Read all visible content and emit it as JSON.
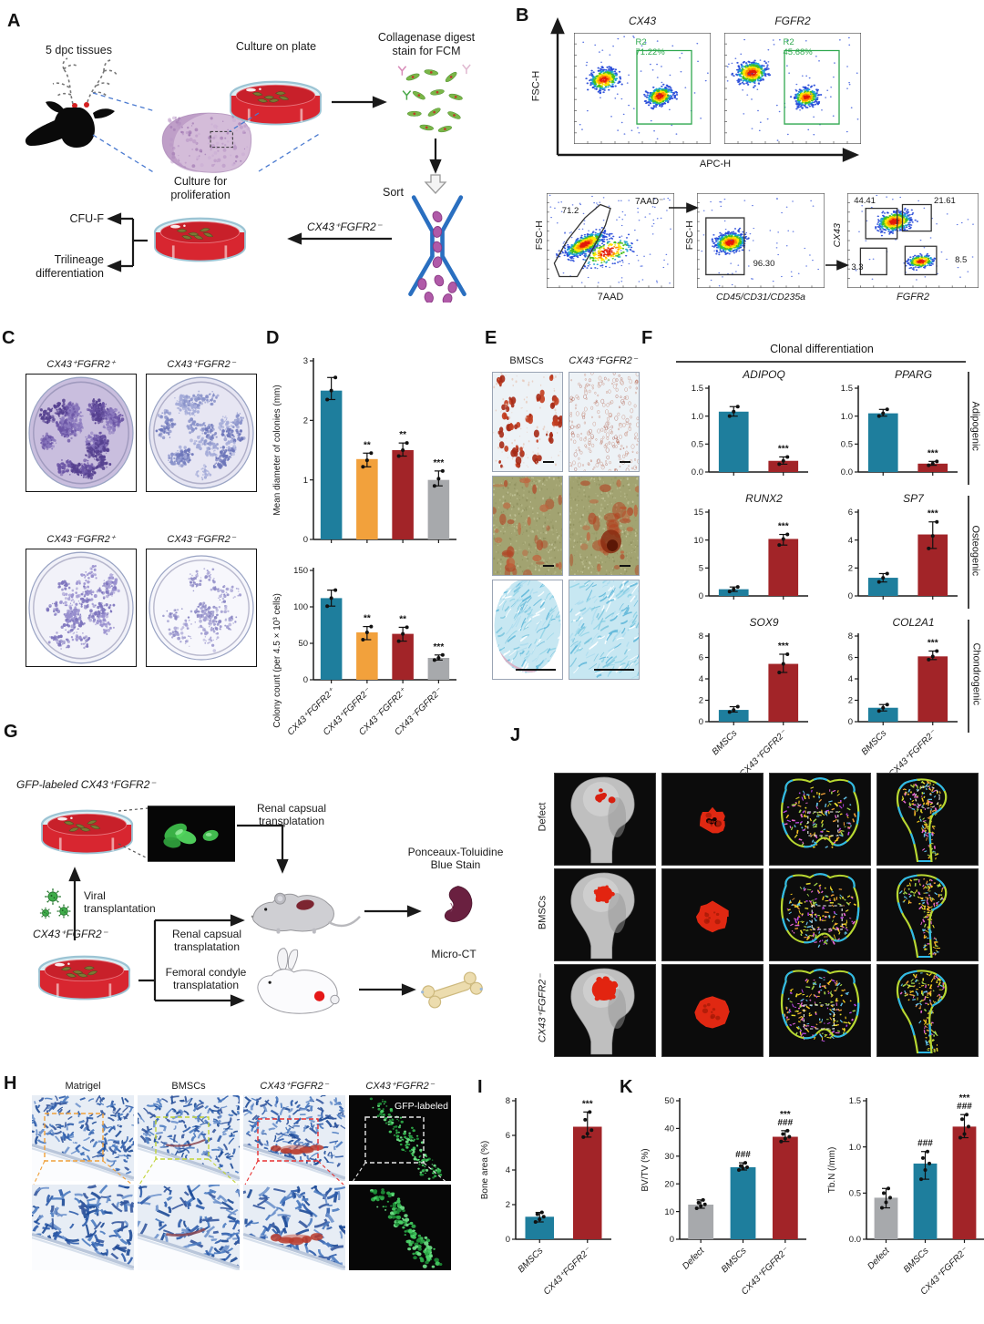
{
  "colors": {
    "teal": "#1e7e9d",
    "orange": "#f2a13c",
    "dark_red": "#a22428",
    "gray": "#a7a9ac",
    "gate_green": "#2fa84f",
    "petri_red": "#c8202a",
    "gfp_green": "#3dbb4a"
  },
  "populations": {
    "pp": "CX43⁺FGFR2⁺",
    "pm": "CX43⁺FGFR2⁻",
    "mp": "CX43⁻FGFR2⁺",
    "mm": "CX43⁻FGFR2⁻"
  },
  "panel_a": {
    "label": "A",
    "tissues": "5 dpc tissues",
    "culture_plate": "Culture on plate",
    "collagenase": "Collagenase digest\nstain for FCM",
    "sort": "Sort",
    "sorted_population": "CX43⁺FGFR2⁻",
    "culture_proliferation": "Culture for\nproliferation",
    "cfu": "CFU-F",
    "trilineage": "Trilineage\ndifferentiation"
  },
  "panel_b": {
    "label": "B",
    "y_axis": "FSC-H",
    "x_axis": "APC-H",
    "cx43": {
      "title": "CX43",
      "gate": "R2\n71.22%"
    },
    "fgfr2": {
      "title": "FGFR2",
      "gate": "R2\n45.68%"
    },
    "viability": {
      "xlabel": "7AAD",
      "ylabel": "FSC-H",
      "gate_pct": "71.2",
      "negative": "7AAD⁻"
    },
    "lineage": {
      "xlabel": "CD45/CD31/CD235a",
      "ylabel": "FSC-H",
      "gate_pct": "96.30"
    },
    "quad": {
      "xlabel": "FGFR2",
      "ylabel": "CX43",
      "tl": "44.41",
      "tr": "21.61",
      "bl": "3.3",
      "br": "8.5"
    }
  },
  "panel_c": {
    "label": "C",
    "plates": [
      {
        "label": "CX43⁺FGFR2⁺"
      },
      {
        "label": "CX43⁺FGFR2⁻"
      },
      {
        "label": "CX43⁻FGFR2⁺"
      },
      {
        "label": "CX43⁻FGFR2⁻"
      }
    ]
  },
  "panel_d": {
    "label": "D"
  },
  "panel_e": {
    "label": "E",
    "col1": "BMSCs",
    "col2": "CX43⁺FGFR2⁻"
  },
  "panel_f": {
    "label": "F",
    "header": "Clonal differentiation",
    "groups": [
      "Adipogenic",
      "Osteogenic",
      "Chondrogenic"
    ]
  },
  "panel_g": {
    "label": "G",
    "gfp_label": "GFP-labeled CX43⁺FGFR2⁻",
    "viral": "Viral\ntransplantation",
    "population": "CX43⁺FGFR2⁻",
    "renal_top": "Renal capsual\ntransplatation",
    "renal_mid": "Renal capsual\ntransplatation",
    "femoral": "Femoral condyle\ntransplatation",
    "ponceaux": "Ponceaux-Toluidine\nBlue Stain",
    "microct": "Micro-CT"
  },
  "panel_h": {
    "label": "H",
    "columns": [
      "Matrigel",
      "BMSCs",
      "CX43⁺FGFR2⁻",
      "CX43⁺FGFR2⁻"
    ],
    "gfp_tag": "GFP-labeled"
  },
  "panel_i": {
    "label": "I"
  },
  "panel_j": {
    "label": "J",
    "rows": [
      "Defect",
      "BMSCs",
      "CX43⁺FGFR2⁻"
    ]
  },
  "panel_k": {
    "label": "K"
  },
  "chart_data": {
    "colony_diameter": {
      "type": "bar",
      "title": "",
      "ylabel": "Mean diameter of colonies (mm)",
      "ylim": [
        0,
        3
      ],
      "yticks": [
        "0",
        "1",
        "2",
        "3"
      ],
      "categories": [
        "CX43⁺FGFR2⁺",
        "CX43⁺FGFR2⁻",
        "CX43⁻FGFR2⁺",
        "CX43⁻FGFR2⁻"
      ],
      "values": [
        2.5,
        1.35,
        1.5,
        1.0
      ],
      "bar_colors": [
        "teal",
        "orange",
        "dark_red",
        "gray"
      ],
      "sig": [
        "",
        "**",
        "**",
        "***"
      ],
      "points": [
        [
          2.35,
          2.5,
          2.72
        ],
        [
          1.22,
          1.33,
          1.45
        ],
        [
          1.4,
          1.5,
          1.62
        ],
        [
          0.9,
          1.02,
          1.15
        ]
      ],
      "show_xlabels": false
    },
    "colony_count": {
      "type": "bar",
      "title": "",
      "ylabel": "Colony count (per 4.5 × 10³ cells)",
      "ylim": [
        0,
        150
      ],
      "yticks": [
        "0",
        "50",
        "100",
        "150"
      ],
      "categories": [
        "CX43⁺FGFR2⁺",
        "CX43⁺FGFR2⁻",
        "CX43⁻FGFR2⁺",
        "CX43⁻FGFR2⁻"
      ],
      "values": [
        112,
        65,
        63,
        30
      ],
      "bar_colors": [
        "teal",
        "orange",
        "dark_red",
        "gray"
      ],
      "sig": [
        "",
        "**",
        "**",
        "***"
      ],
      "points": [
        [
          101,
          112,
          123
        ],
        [
          55,
          65,
          73
        ],
        [
          53,
          63,
          72
        ],
        [
          27,
          30,
          34
        ]
      ],
      "show_xlabels": true
    },
    "adipoq": {
      "type": "bar",
      "title": "ADIPOQ",
      "ylabel": "",
      "ylim": [
        0,
        1.5
      ],
      "yticks": [
        "0.0",
        "0.5",
        "1.0",
        "1.5"
      ],
      "categories": [
        "BMSCs",
        "CX43⁺FGFR2⁻"
      ],
      "values": [
        1.08,
        0.2
      ],
      "bar_colors": [
        "teal",
        "dark_red"
      ],
      "sig": [
        "",
        "***"
      ],
      "points": [
        [
          1.0,
          1.08,
          1.17
        ],
        [
          0.14,
          0.2,
          0.27
        ]
      ],
      "show_xlabels": false
    },
    "pparg": {
      "type": "bar",
      "title": "PPARG",
      "ylabel": "",
      "ylim": [
        0,
        1.5
      ],
      "yticks": [
        "0.0",
        "0.5",
        "1.0",
        "1.5"
      ],
      "categories": [
        "BMSCs",
        "CX43⁺FGFR2⁻"
      ],
      "values": [
        1.05,
        0.15
      ],
      "bar_colors": [
        "teal",
        "dark_red"
      ],
      "sig": [
        "",
        "***"
      ],
      "points": [
        [
          1.0,
          1.05,
          1.12
        ],
        [
          0.12,
          0.15,
          0.19
        ]
      ],
      "show_xlabels": false
    },
    "runx2": {
      "type": "bar",
      "title": "RUNX2",
      "ylabel": "",
      "ylim": [
        0,
        15
      ],
      "yticks": [
        "0",
        "5",
        "10",
        "15"
      ],
      "categories": [
        "BMSCs",
        "CX43⁺FGFR2⁻"
      ],
      "values": [
        1.2,
        10.2
      ],
      "bar_colors": [
        "teal",
        "dark_red"
      ],
      "sig": [
        "",
        "***"
      ],
      "points": [
        [
          0.8,
          1.2,
          1.6
        ],
        [
          9.1,
          10.2,
          11.0
        ]
      ],
      "show_xlabels": false
    },
    "sp7": {
      "type": "bar",
      "title": "SP7",
      "ylabel": "",
      "ylim": [
        0,
        6
      ],
      "yticks": [
        "0",
        "2",
        "4",
        "6"
      ],
      "categories": [
        "BMSCs",
        "CX43⁺FGFR2⁻"
      ],
      "values": [
        1.3,
        4.4
      ],
      "bar_colors": [
        "teal",
        "dark_red"
      ],
      "sig": [
        "",
        "***"
      ],
      "points": [
        [
          1.0,
          1.3,
          1.6
        ],
        [
          3.4,
          4.3,
          5.3
        ]
      ],
      "show_xlabels": false
    },
    "sox9": {
      "type": "bar",
      "title": "SOX9",
      "ylabel": "",
      "ylim": [
        0,
        8
      ],
      "yticks": [
        "0",
        "2",
        "4",
        "6",
        "8"
      ],
      "categories": [
        "BMSCs",
        "CX43⁺FGFR2⁻"
      ],
      "values": [
        1.1,
        5.4
      ],
      "bar_colors": [
        "teal",
        "dark_red"
      ],
      "sig": [
        "",
        "***"
      ],
      "points": [
        [
          0.9,
          1.1,
          1.4
        ],
        [
          4.6,
          5.4,
          6.3
        ]
      ],
      "show_xlabels": true
    },
    "col2a1": {
      "type": "bar",
      "title": "COL2A1",
      "ylabel": "",
      "ylim": [
        0,
        8
      ],
      "yticks": [
        "0",
        "2",
        "4",
        "6",
        "8"
      ],
      "categories": [
        "BMSCs",
        "CX43⁺FGFR2⁻"
      ],
      "values": [
        1.3,
        6.1
      ],
      "bar_colors": [
        "teal",
        "dark_red"
      ],
      "sig": [
        "",
        "***"
      ],
      "points": [
        [
          1.0,
          1.3,
          1.6
        ],
        [
          5.8,
          6.1,
          6.6
        ]
      ],
      "show_xlabels": true
    },
    "bone_area": {
      "type": "bar",
      "title": "",
      "ylabel": "Bone area (%)",
      "ylim": [
        0,
        8
      ],
      "yticks": [
        "0",
        "2",
        "4",
        "6",
        "8"
      ],
      "categories": [
        "BMSCs",
        "CX43⁺FGFR2⁻"
      ],
      "values": [
        1.3,
        6.5
      ],
      "bar_colors": [
        "teal",
        "dark_red"
      ],
      "sig": [
        "",
        "***"
      ],
      "points": [
        [
          1.0,
          1.15,
          1.3,
          1.45,
          1.55
        ],
        [
          5.9,
          6.1,
          6.3,
          6.9,
          7.35
        ]
      ],
      "show_xlabels": true
    },
    "bvtv": {
      "type": "bar",
      "title": "",
      "ylabel": "BV/TV (%)",
      "ylim": [
        0,
        50
      ],
      "yticks": [
        "0",
        "10",
        "20",
        "30",
        "40",
        "50"
      ],
      "categories": [
        "Defect",
        "BMSCs",
        "CX43⁺FGFR2⁻"
      ],
      "values": [
        12.5,
        26,
        37
      ],
      "bar_colors": [
        "gray",
        "teal",
        "dark_red"
      ],
      "sig": [
        "",
        "###",
        "***\n###"
      ],
      "points": [
        [
          11.2,
          12,
          12.6,
          13.2,
          14.2
        ],
        [
          25,
          25.6,
          26,
          26.5,
          27.6
        ],
        [
          35.3,
          36.4,
          37,
          38,
          39.2
        ]
      ],
      "show_xlabels": true
    },
    "tbn": {
      "type": "bar",
      "title": "",
      "ylabel": "Tb.N (/mm)",
      "ylim": [
        0,
        1.5
      ],
      "yticks": [
        "0.0",
        "0.5",
        "1.0",
        "1.5"
      ],
      "categories": [
        "Defect",
        "BMSCs",
        "CX43⁺FGFR2⁻"
      ],
      "values": [
        0.45,
        0.82,
        1.22
      ],
      "bar_colors": [
        "gray",
        "teal",
        "dark_red"
      ],
      "sig": [
        "",
        "###",
        "***\n###"
      ],
      "points": [
        [
          0.34,
          0.4,
          0.45,
          0.5,
          0.55
        ],
        [
          0.65,
          0.75,
          0.82,
          0.88,
          0.95
        ],
        [
          1.1,
          1.14,
          1.22,
          1.3,
          1.35
        ]
      ],
      "show_xlabels": true
    }
  }
}
